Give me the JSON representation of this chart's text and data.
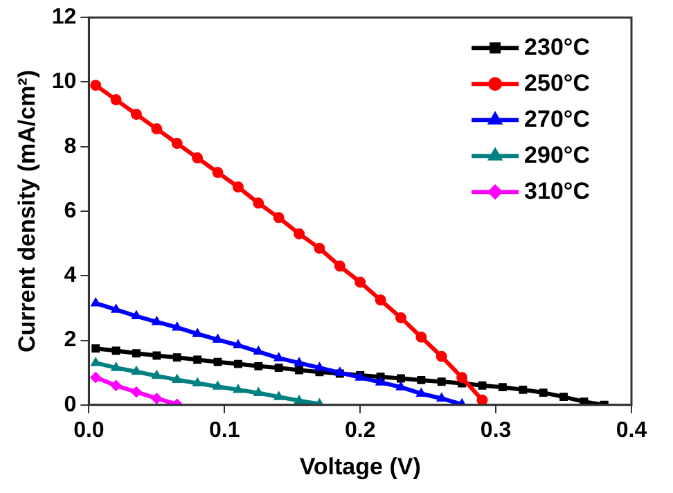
{
  "chart_data": {
    "type": "line",
    "xlabel": "Voltage (V)",
    "ylabel": "Current density (mA/cm²)",
    "xlim": [
      0,
      0.4
    ],
    "xticks": [
      {
        "value": 0,
        "label": "0.0"
      },
      {
        "value": 0.1,
        "label": "0.1"
      },
      {
        "value": 0.2,
        "label": "0.2"
      },
      {
        "value": 0.3,
        "label": "0.3"
      },
      {
        "value": 0.4,
        "label": "0.4"
      }
    ],
    "ylim": [
      0,
      12
    ],
    "yticks": [
      0,
      2,
      4,
      6,
      8,
      10,
      12
    ],
    "grid": false,
    "legend": "top right",
    "line_style": "solid",
    "series": [
      {
        "name": "230°C",
        "color": "#000000",
        "marker": "square",
        "x": [
          0.005,
          0.02,
          0.035,
          0.05,
          0.065,
          0.08,
          0.095,
          0.11,
          0.125,
          0.14,
          0.155,
          0.17,
          0.185,
          0.2,
          0.215,
          0.23,
          0.245,
          0.26,
          0.275,
          0.29,
          0.305,
          0.32,
          0.335,
          0.35,
          0.365,
          0.38
        ],
        "values": [
          1.75,
          1.68,
          1.6,
          1.53,
          1.47,
          1.4,
          1.33,
          1.27,
          1.2,
          1.15,
          1.08,
          1.02,
          0.97,
          0.92,
          0.87,
          0.82,
          0.77,
          0.72,
          0.67,
          0.6,
          0.55,
          0.47,
          0.38,
          0.25,
          0.1,
          0
        ]
      },
      {
        "name": "250°C",
        "color": "#ff0000",
        "marker": "circle",
        "x": [
          0.005,
          0.02,
          0.035,
          0.05,
          0.065,
          0.08,
          0.095,
          0.11,
          0.125,
          0.14,
          0.155,
          0.17,
          0.185,
          0.2,
          0.215,
          0.23,
          0.245,
          0.26,
          0.275,
          0.29
        ],
        "values": [
          9.9,
          9.45,
          9.0,
          8.55,
          8.1,
          7.65,
          7.2,
          6.75,
          6.25,
          5.8,
          5.3,
          4.85,
          4.3,
          3.8,
          3.25,
          2.7,
          2.1,
          1.5,
          0.85,
          0.15
        ]
      },
      {
        "name": "270°C",
        "color": "#0000ff",
        "marker": "triangle",
        "x": [
          0.005,
          0.02,
          0.035,
          0.05,
          0.065,
          0.08,
          0.095,
          0.11,
          0.125,
          0.14,
          0.155,
          0.17,
          0.185,
          0.2,
          0.215,
          0.23,
          0.245,
          0.26,
          0.275
        ],
        "values": [
          3.15,
          2.95,
          2.75,
          2.57,
          2.4,
          2.2,
          2.02,
          1.85,
          1.65,
          1.45,
          1.3,
          1.15,
          1.0,
          0.85,
          0.7,
          0.55,
          0.35,
          0.2,
          0.02
        ]
      },
      {
        "name": "290°C",
        "color": "#008080",
        "marker": "triangle",
        "x": [
          0.005,
          0.02,
          0.035,
          0.05,
          0.065,
          0.08,
          0.095,
          0.11,
          0.125,
          0.14,
          0.155,
          0.17
        ],
        "values": [
          1.3,
          1.15,
          1.03,
          0.9,
          0.78,
          0.67,
          0.57,
          0.47,
          0.37,
          0.25,
          0.13,
          0.03
        ]
      },
      {
        "name": "310°C",
        "color": "#ff00ff",
        "marker": "diamond",
        "x": [
          0.005,
          0.02,
          0.035,
          0.05,
          0.065
        ],
        "values": [
          0.85,
          0.6,
          0.4,
          0.2,
          0.02
        ]
      }
    ]
  }
}
